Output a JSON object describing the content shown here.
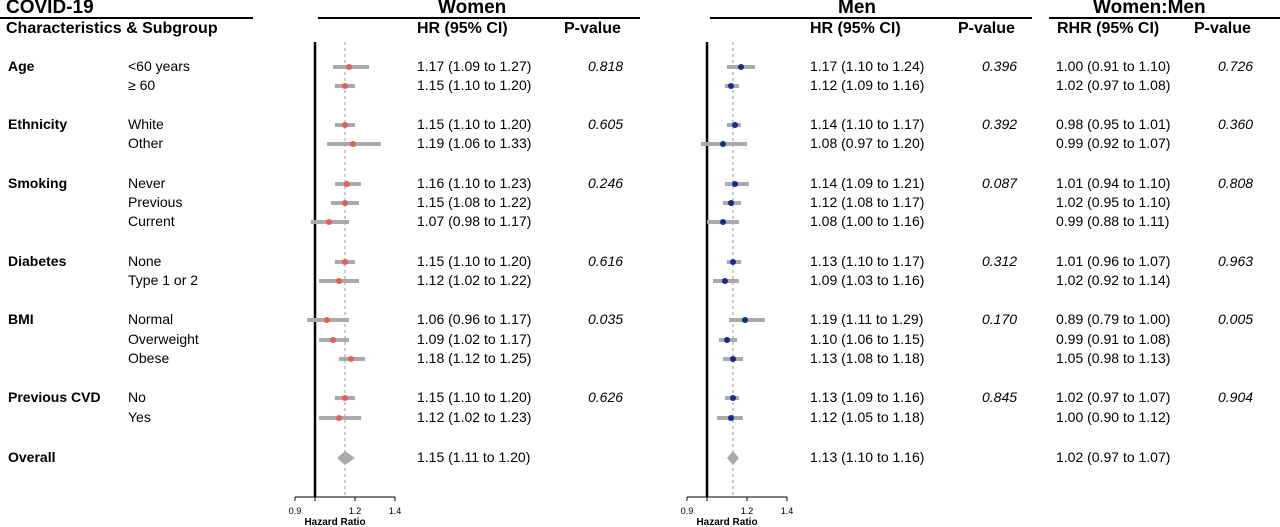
{
  "header": {
    "covid_title": "COVID-19",
    "char_subgroup": "Characteristics & Subgroup",
    "women_title": "Women",
    "men_title": "Men",
    "ratio_title": "Women:Men",
    "hr_col": "HR (95% CI)",
    "pval_col": "P-value",
    "rhr_col": "RHR (95% CI)"
  },
  "groups": [
    {
      "name": "Age",
      "pw": "0.818",
      "pm": "0.396",
      "pr": "0.726",
      "rows": [
        {
          "label": "<60 years",
          "w": "1.17 (1.09 to 1.27)",
          "m": "1.17 (1.10 to 1.24)",
          "r": "1.00 (0.91 to 1.10)"
        },
        {
          "label": "≥ 60",
          "w": "1.15 (1.10 to 1.20)",
          "m": "1.12 (1.09 to 1.16)",
          "r": "1.02 (0.97 to 1.08)"
        }
      ]
    },
    {
      "name": "Ethnicity",
      "pw": "0.605",
      "pm": "0.392",
      "pr": "0.360",
      "rows": [
        {
          "label": "White",
          "w": "1.15 (1.10 to 1.20)",
          "m": "1.14 (1.10 to 1.17)",
          "r": "0.98 (0.95 to 1.01)"
        },
        {
          "label": "Other",
          "w": "1.19 (1.06 to 1.33)",
          "m": "1.08 (0.97 to 1.20)",
          "r": "0.99 (0.92 to 1.07)"
        }
      ]
    },
    {
      "name": "Smoking",
      "pw": "0.246",
      "pm": "0.087",
      "pr": "0.808",
      "rows": [
        {
          "label": "Never",
          "w": "1.16 (1.10 to 1.23)",
          "m": "1.14 (1.09 to 1.21)",
          "r": "1.01 (0.94 to 1.10)"
        },
        {
          "label": "Previous",
          "w": "1.15 (1.08 to 1.22)",
          "m": "1.12 (1.08 to 1.17)",
          "r": "1.02 (0.95 to 1.10)"
        },
        {
          "label": "Current",
          "w": "1.07 (0.98 to 1.17)",
          "m": "1.08 (1.00 to 1.16)",
          "r": "0.99 (0.88 to 1.11)"
        }
      ]
    },
    {
      "name": "Diabetes",
      "pw": "0.616",
      "pm": "0.312",
      "pr": "0.963",
      "rows": [
        {
          "label": "None",
          "w": "1.15 (1.10 to 1.20)",
          "m": "1.13 (1.10 to 1.17)",
          "r": "1.01 (0.96 to 1.07)"
        },
        {
          "label": "Type 1 or 2",
          "w": "1.12 (1.02 to 1.22)",
          "m": "1.09 (1.03 to 1.16)",
          "r": "1.02 (0.92 to 1.14)"
        }
      ]
    },
    {
      "name": "BMI",
      "pw": "0.035",
      "pm": "0.170",
      "pr": "0.005",
      "rows": [
        {
          "label": "Normal",
          "w": "1.06 (0.96 to 1.17)",
          "m": "1.19 (1.11 to 1.29)",
          "r": "0.89 (0.79 to 1.00)"
        },
        {
          "label": "Overweight",
          "w": "1.09 (1.02 to 1.17)",
          "m": "1.10 (1.06 to 1.15)",
          "r": "0.99 (0.91 to 1.08)"
        },
        {
          "label": "Obese",
          "w": "1.18 (1.12 to 1.25)",
          "m": "1.13 (1.08 to 1.18)",
          "r": "1.05 (0.98 to 1.13)"
        }
      ]
    },
    {
      "name": "Previous CVD",
      "pw": "0.626",
      "pm": "0.845",
      "pr": "0.904",
      "rows": [
        {
          "label": "No",
          "w": "1.15 (1.10 to 1.20)",
          "m": "1.13 (1.09 to 1.16)",
          "r": "1.02 (0.97 to 1.07)"
        },
        {
          "label": "Yes",
          "w": "1.12 (1.02 to 1.23)",
          "m": "1.12 (1.05 to 1.18)",
          "r": "1.00 (0.90 to 1.12)"
        }
      ]
    },
    {
      "name": "Overall",
      "pw": "",
      "pm": "",
      "pr": "",
      "rows": [
        {
          "label": "",
          "w": "1.15 (1.11 to 1.20)",
          "m": "1.13 (1.10 to 1.16)",
          "r": "1.02 (0.97 to 1.07)"
        }
      ]
    }
  ],
  "chart_data": [
    {
      "type": "scatter",
      "name": "Women",
      "xlabel": "Hazard Ratio",
      "xlim": [
        0.9,
        1.4
      ],
      "xticks": [
        "0.9",
        "1.2",
        "1.4"
      ],
      "reference_line": 1.0,
      "overall_line": 1.15,
      "marker_color": "#e06055",
      "points": [
        {
          "hr": 1.17,
          "lo": 1.09,
          "hi": 1.27
        },
        {
          "hr": 1.15,
          "lo": 1.1,
          "hi": 1.2
        },
        {
          "hr": 1.15,
          "lo": 1.1,
          "hi": 1.2
        },
        {
          "hr": 1.19,
          "lo": 1.06,
          "hi": 1.33
        },
        {
          "hr": 1.16,
          "lo": 1.1,
          "hi": 1.23
        },
        {
          "hr": 1.15,
          "lo": 1.08,
          "hi": 1.22
        },
        {
          "hr": 1.07,
          "lo": 0.98,
          "hi": 1.17
        },
        {
          "hr": 1.15,
          "lo": 1.1,
          "hi": 1.2
        },
        {
          "hr": 1.12,
          "lo": 1.02,
          "hi": 1.22
        },
        {
          "hr": 1.06,
          "lo": 0.96,
          "hi": 1.17
        },
        {
          "hr": 1.09,
          "lo": 1.02,
          "hi": 1.17
        },
        {
          "hr": 1.18,
          "lo": 1.12,
          "hi": 1.25
        },
        {
          "hr": 1.15,
          "lo": 1.1,
          "hi": 1.2
        },
        {
          "hr": 1.12,
          "lo": 1.02,
          "hi": 1.23
        }
      ],
      "overall": {
        "hr": 1.15,
        "lo": 1.11,
        "hi": 1.2
      }
    },
    {
      "type": "scatter",
      "name": "Men",
      "xlabel": "Hazard Ratio",
      "xlim": [
        0.9,
        1.4
      ],
      "xticks": [
        "0.9",
        "1.2",
        "1.4"
      ],
      "reference_line": 1.0,
      "overall_line": 1.13,
      "marker_color": "#1a2a8c",
      "points": [
        {
          "hr": 1.17,
          "lo": 1.1,
          "hi": 1.24
        },
        {
          "hr": 1.12,
          "lo": 1.09,
          "hi": 1.16
        },
        {
          "hr": 1.14,
          "lo": 1.1,
          "hi": 1.17
        },
        {
          "hr": 1.08,
          "lo": 0.97,
          "hi": 1.2
        },
        {
          "hr": 1.14,
          "lo": 1.09,
          "hi": 1.21
        },
        {
          "hr": 1.12,
          "lo": 1.08,
          "hi": 1.17
        },
        {
          "hr": 1.08,
          "lo": 1.0,
          "hi": 1.16
        },
        {
          "hr": 1.13,
          "lo": 1.1,
          "hi": 1.17
        },
        {
          "hr": 1.09,
          "lo": 1.03,
          "hi": 1.16
        },
        {
          "hr": 1.19,
          "lo": 1.11,
          "hi": 1.29
        },
        {
          "hr": 1.1,
          "lo": 1.06,
          "hi": 1.15
        },
        {
          "hr": 1.13,
          "lo": 1.08,
          "hi": 1.18
        },
        {
          "hr": 1.13,
          "lo": 1.09,
          "hi": 1.16
        },
        {
          "hr": 1.12,
          "lo": 1.05,
          "hi": 1.18
        }
      ],
      "overall": {
        "hr": 1.13,
        "lo": 1.1,
        "hi": 1.16
      }
    }
  ]
}
